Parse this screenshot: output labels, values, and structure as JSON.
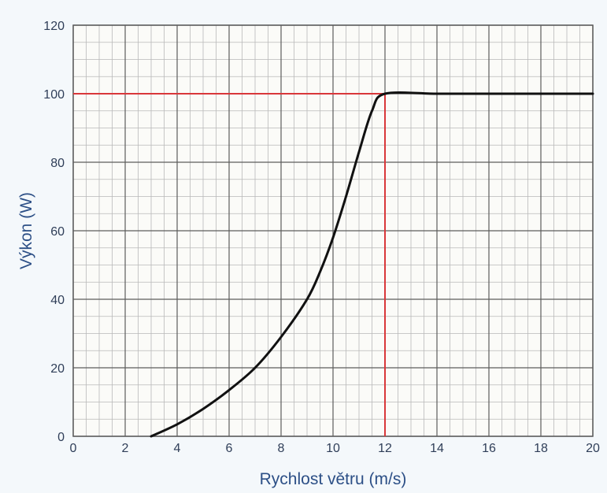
{
  "chart_data": {
    "type": "line",
    "title": "",
    "xlabel": "Rychlost větru (m/s)",
    "ylabel": "Výkon (W)",
    "xlim": [
      0,
      20
    ],
    "ylim": [
      0,
      120
    ],
    "x_ticks": [
      0,
      2,
      4,
      6,
      8,
      10,
      12,
      14,
      16,
      18,
      20
    ],
    "y_ticks": [
      0,
      20,
      40,
      60,
      80,
      100,
      120
    ],
    "x_tick_labels": [
      "0",
      "2",
      "4",
      "6",
      "8",
      "10",
      "12",
      "14",
      "16",
      "18",
      "20"
    ],
    "y_tick_labels": [
      "0",
      "20",
      "40",
      "60",
      "80",
      "100",
      "120"
    ],
    "grid": true,
    "minor_grid": true,
    "legend": "none",
    "series": [
      {
        "color": "#111111",
        "x": [
          3,
          4,
          5,
          6,
          7,
          8,
          9,
          9.5,
          10,
          10.5,
          11,
          11.5,
          12,
          14,
          16,
          18,
          20
        ],
        "y": [
          0,
          3.5,
          8,
          13.5,
          20,
          29,
          40,
          48,
          58,
          70,
          83,
          95,
          100,
          100,
          100,
          100,
          100
        ]
      }
    ],
    "reference_lines": [
      {
        "orientation": "horizontal",
        "y": 100,
        "x_from": 0,
        "x_to": 12,
        "color": "#d9373a"
      },
      {
        "orientation": "vertical",
        "x": 12,
        "y_from": 0,
        "y_to": 100,
        "color": "#d9373a"
      }
    ],
    "colors": {
      "plot_background": "#fbfbf8",
      "major_grid": "#5c5c5c",
      "minor_grid": "#b9b9b9",
      "axis_label": "#2c4f86",
      "tick_label": "#2f3e58"
    }
  }
}
